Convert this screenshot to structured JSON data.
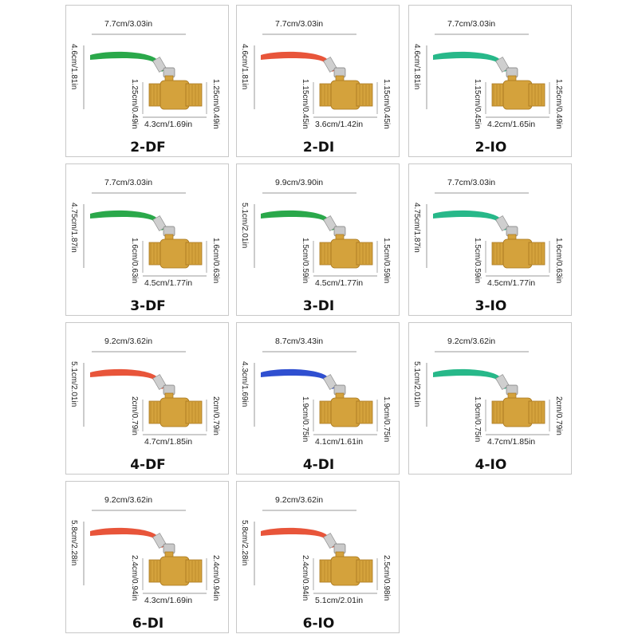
{
  "colors": {
    "red": "#e8553a",
    "green": "#2aa84a",
    "teal": "#27b889",
    "blue": "#2f4fd0",
    "brass": "#d4a23c",
    "brass_dark": "#a8771f"
  },
  "products": [
    {
      "name": "2-DF",
      "handle_color": "#2aa84a",
      "width": "7.7cm/3.03in",
      "height": "4.6cm/1.81in",
      "left_dim": "1.25cm/0.49in",
      "right_dim": "1.25cm/0.49in",
      "length": "4.3cm/1.69in"
    },
    {
      "name": "2-DI",
      "handle_color": "#e8553a",
      "width": "7.7cm/3.03in",
      "height": "4.6cm/1.81in",
      "left_dim": "1.15cm/0.45in",
      "right_dim": "1.15cm/0.45in",
      "length": "3.6cm/1.42in"
    },
    {
      "name": "2-IO",
      "handle_color": "#27b889",
      "width": "7.7cm/3.03in",
      "height": "4.6cm/1.81in",
      "left_dim": "1.15cm/0.45in",
      "right_dim": "1.25cm/0.49in",
      "length": "4.2cm/1.65in"
    },
    {
      "name": "3-DF",
      "handle_color": "#2aa84a",
      "width": "7.7cm/3.03in",
      "height": "4.75cm/1.87in",
      "left_dim": "1.6cm/0.63in",
      "right_dim": "1.6cm/0.63in",
      "length": "4.5cm/1.77in"
    },
    {
      "name": "3-DI",
      "handle_color": "#2aa84a",
      "width": "9.9cm/3.90in",
      "height": "5.1cm/2.01in",
      "left_dim": "1.5cm/0.59in",
      "right_dim": "1.5cm/0.59in",
      "length": "4.5cm/1.77in"
    },
    {
      "name": "3-IO",
      "handle_color": "#27b889",
      "width": "7.7cm/3.03in",
      "height": "4.75cm/1.87in",
      "left_dim": "1.5cm/0.59in",
      "right_dim": "1.6cm/0.63in",
      "length": "4.5cm/1.77in"
    },
    {
      "name": "4-DF",
      "handle_color": "#e8553a",
      "width": "9.2cm/3.62in",
      "height": "5.1cm/2.01in",
      "left_dim": "2cm/0.79in",
      "right_dim": "2cm/0.79in",
      "length": "4.7cm/1.85in"
    },
    {
      "name": "4-DI",
      "handle_color": "#2f4fd0",
      "width": "8.7cm/3.43in",
      "height": "4.3cm/1.69in",
      "left_dim": "1.9cm/0.75in",
      "right_dim": "1.9cm/0.75in",
      "length": "4.1cm/1.61in"
    },
    {
      "name": "4-IO",
      "handle_color": "#27b889",
      "width": "9.2cm/3.62in",
      "height": "5.1cm/2.01in",
      "left_dim": "1.9cm/0.75in",
      "right_dim": "2cm/0.79in",
      "length": "4.7cm/1.85in"
    },
    {
      "name": "6-DI",
      "handle_color": "#e8553a",
      "width": "9.2cm/3.62in",
      "height": "5.8cm/2.28in",
      "left_dim": "2.4cm/0.94in",
      "right_dim": "2.4cm/0.94in",
      "length": "4.3cm/1.69in"
    },
    {
      "name": "6-IO",
      "handle_color": "#e8553a",
      "width": "9.2cm/3.62in",
      "height": "5.8cm/2.28in",
      "left_dim": "2.4cm/0.94in",
      "right_dim": "2.5cm/0.98in",
      "length": "5.1cm/2.01in"
    }
  ]
}
